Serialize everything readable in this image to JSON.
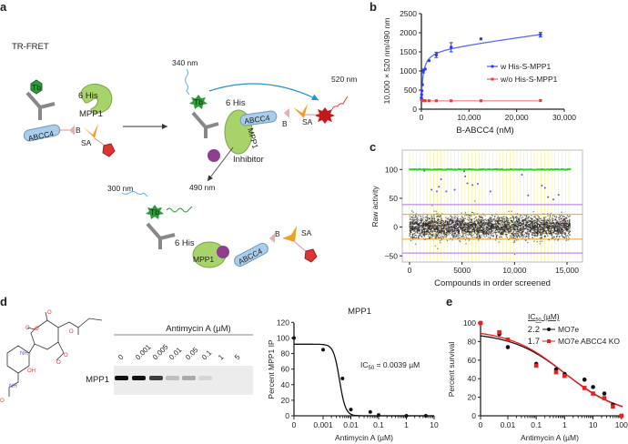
{
  "panel_labels": {
    "a": "a",
    "b": "b",
    "c": "c",
    "d": "d",
    "e": "e"
  },
  "diagram": {
    "title": "TR-FRET",
    "tb": "Tb",
    "his": "6 His",
    "mpp1": "MPP1",
    "abcc4": "ABCC4",
    "b": "B",
    "sa": "SA",
    "nm340": "340 nm",
    "nm520": "520 nm",
    "nm490": "490 nm",
    "nm300": "300 nm",
    "inhibitor": "Inhibitor",
    "colors": {
      "mpp1": "#a8d26a",
      "abcc4": "#a9cdea",
      "tb": "#2e9b3a",
      "inhibitor": "#8e3d91",
      "acceptor": "#c4161c",
      "sa": "#f0a020",
      "b": "#f2aaa8"
    }
  },
  "gel": {
    "title": "Antimycin A (µM)",
    "row_label": "MPP1",
    "lanes": [
      "0",
      "0.001",
      "0.005",
      "0.01",
      "0.05",
      "0.1",
      "1",
      "5"
    ],
    "band_intensity": [
      1.0,
      1.0,
      0.8,
      0.2,
      0.3,
      0.1,
      0,
      0
    ]
  },
  "structure": {
    "labels": [
      "O",
      "O",
      "NH",
      "O",
      "OH",
      "NH",
      "O",
      "O",
      "O",
      "O"
    ]
  },
  "chart_data": [
    {
      "id": "b",
      "type": "scatter",
      "xlabel": "B-ABCC4 (nM)",
      "ylabel": "10,000 × 520 nm/490 nm",
      "xlim": [
        0,
        30000
      ],
      "ylim": [
        0,
        2500
      ],
      "xticks": [
        "0",
        "10,000",
        "20,000",
        "30,000"
      ],
      "xtick_values": [
        0,
        10000,
        20000,
        30000
      ],
      "yticks": [
        "0",
        "500",
        "1000",
        "1500",
        "2000",
        "2500"
      ],
      "ytick_values": [
        0,
        500,
        1000,
        1500,
        2000,
        2500
      ],
      "legend_position": "right",
      "series": [
        {
          "name": "w His-S-MPP1",
          "color": "#2a3cf0",
          "x": [
            0,
            50,
            100,
            200,
            400,
            800,
            1600,
            3125,
            6250,
            12500,
            25000
          ],
          "y": [
            300,
            380,
            480,
            640,
            1000,
            1050,
            1270,
            1420,
            1620,
            1840,
            1950
          ],
          "err": [
            0,
            0,
            0,
            0,
            50,
            0,
            0,
            70,
            120,
            0,
            60
          ]
        },
        {
          "name": "w/o His-S-MPP1",
          "color": "#f03a3a",
          "x": [
            0,
            50,
            100,
            200,
            400,
            800,
            1600,
            3125,
            6250,
            12500,
            25000
          ],
          "y": [
            260,
            250,
            240,
            230,
            225,
            220,
            220,
            220,
            220,
            220,
            225
          ]
        }
      ]
    },
    {
      "id": "c",
      "type": "scatter",
      "xlabel": "Compounds in order screened",
      "ylabel": "Raw activity",
      "xlim": [
        0,
        15500
      ],
      "ylim": [
        -60,
        130
      ],
      "xticks": [
        "0",
        "5000",
        "10,000",
        "15,000"
      ],
      "xtick_values": [
        0,
        5000,
        10000,
        15000
      ],
      "yticks": [
        "100",
        "50",
        "0",
        "−50"
      ],
      "ytick_values": [
        100,
        50,
        0,
        -50
      ],
      "positive_control": 100,
      "threshold_lines": [
        {
          "value": 39,
          "color": "#b070e0"
        },
        {
          "value": -45,
          "color": "#b070e0"
        },
        {
          "value": 22,
          "color": "#f0a020"
        },
        {
          "value": -21,
          "color": "#f0a020"
        }
      ],
      "hits": {
        "color": "#5a5ad8",
        "x": [
          1400,
          2100,
          2600,
          2800,
          3000,
          3500,
          4300,
          5200,
          5300,
          5500,
          6000,
          6500,
          7700,
          10700,
          11300,
          12600,
          12900,
          13200,
          13700,
          14200
        ],
        "y": [
          98,
          65,
          62,
          70,
          83,
          62,
          65,
          97,
          88,
          76,
          73,
          75,
          62,
          91,
          55,
          72,
          68,
          52,
          48,
          56
        ]
      },
      "colors": {
        "control": "#22dd22",
        "compounds": "#222222",
        "plate_dividers": "#f5f08a"
      }
    },
    {
      "id": "d",
      "type": "scatter",
      "title": "MPP1",
      "xlabel": "Antimycin A (µM)",
      "ylabel": "Percent MPP1 IP",
      "xscale": "log",
      "ylim": [
        0,
        120
      ],
      "xticks": [
        "0",
        "0.001",
        "0.01",
        "0.1",
        "1",
        "10"
      ],
      "xtick_values": [
        0,
        0.001,
        0.01,
        0.1,
        1,
        10
      ],
      "yticks": [
        "0",
        "20",
        "40",
        "60",
        "80",
        "100",
        "120"
      ],
      "ytick_values": [
        0,
        20,
        40,
        60,
        80,
        100,
        120
      ],
      "annotation": {
        "prefix": "IC",
        "sub": "50",
        "text": " = 0.0039 µM"
      },
      "series": [
        {
          "x": [
            0,
            0.001,
            0.005,
            0.01,
            0.05,
            0.1,
            1,
            5
          ],
          "y": [
            100,
            85,
            48,
            8,
            5,
            1,
            0,
            0
          ],
          "color": "#111111",
          "fit_ic50": 0.0039,
          "fit_top": 92
        }
      ]
    },
    {
      "id": "e",
      "type": "scatter",
      "xlabel": "Antimycin A (µM)",
      "ylabel": "Percent survival",
      "xscale": "log",
      "ylim": [
        0,
        100
      ],
      "xticks": [
        "0",
        "0.01",
        "0.1",
        "1",
        "10",
        "100"
      ],
      "xtick_values": [
        0,
        0.01,
        0.1,
        1,
        10,
        100
      ],
      "yticks": [
        "0",
        "20",
        "40",
        "60",
        "80",
        "100"
      ],
      "ytick_values": [
        0,
        20,
        40,
        60,
        80,
        100
      ],
      "legend_title": {
        "prefix": "IC",
        "sub": "50",
        "text": " (µM)"
      },
      "legend_position": "top-right",
      "series": [
        {
          "name": "MO7e",
          "ic50_label": "2.2",
          "color": "#111111",
          "x": [
            0,
            0.005,
            0.01,
            0.1,
            0.5,
            1,
            5,
            10,
            25,
            50
          ],
          "y": [
            100,
            88,
            74,
            56,
            50,
            45,
            39,
            31,
            24,
            12
          ]
        },
        {
          "name": "MO7e ABCC4 KO",
          "ic50_label": "1.7",
          "color": "#ee1c1c",
          "x": [
            0,
            0.005,
            0.01,
            0.1,
            0.5,
            1,
            5,
            10,
            25,
            50,
            100
          ],
          "y": [
            100,
            90,
            82,
            54,
            47,
            43,
            30,
            24,
            19,
            10,
            0
          ]
        }
      ]
    }
  ]
}
